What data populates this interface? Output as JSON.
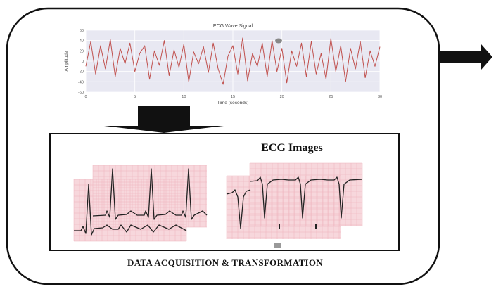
{
  "caption": "DATA ACQUISITION & TRANSFORMATION",
  "images_heading": "ECG Images",
  "chart_data": {
    "type": "line",
    "title": "ECG Wave Signal",
    "xlabel": "Time (seconds)",
    "ylabel": "Amplitude",
    "xlim": [
      0,
      30
    ],
    "ylim": [
      -60,
      60
    ],
    "x_ticks": [
      0,
      5,
      10,
      15,
      20,
      25,
      30
    ],
    "y_ticks": [
      -60,
      -40,
      -20,
      0,
      20,
      40,
      60
    ],
    "grid": true,
    "series": [
      {
        "color": "#c0504d",
        "x": [
          0,
          0.5,
          1,
          1.5,
          2,
          2.5,
          3,
          3.5,
          4,
          4.5,
          5,
          5.5,
          6,
          6.5,
          7,
          7.5,
          8,
          8.5,
          9,
          9.5,
          10,
          10.5,
          11,
          11.5,
          12,
          12.5,
          13,
          13.5,
          14,
          14.5,
          15,
          15.5,
          16,
          16.5,
          17,
          17.5,
          18,
          18.5,
          19,
          19.5,
          20,
          20.5,
          21,
          21.5,
          22,
          22.5,
          23,
          23.5,
          24,
          24.5,
          25,
          25.5,
          26,
          26.5,
          27,
          27.5,
          28,
          28.5,
          29,
          29.5,
          30
        ],
        "y": [
          -10,
          38,
          -25,
          30,
          -15,
          42,
          -30,
          25,
          -5,
          35,
          -20,
          15,
          30,
          -35,
          20,
          -8,
          40,
          -28,
          22,
          -12,
          33,
          -40,
          18,
          -5,
          28,
          -22,
          35,
          -15,
          -45,
          10,
          30,
          -25,
          45,
          -38,
          15,
          -10,
          35,
          -30,
          40,
          -20,
          25,
          -42,
          20,
          -10,
          35,
          -30,
          38,
          -25,
          15,
          -35,
          44,
          -20,
          30,
          -40,
          25,
          -15,
          38,
          -32,
          20,
          -10,
          28
        ]
      }
    ]
  },
  "colors": {
    "ecg_line": "#c0504d",
    "plot_bg": "#e8e8f2",
    "ecg_paper": "#f7d7dc",
    "ecg_grid": "#eeb3bd"
  }
}
